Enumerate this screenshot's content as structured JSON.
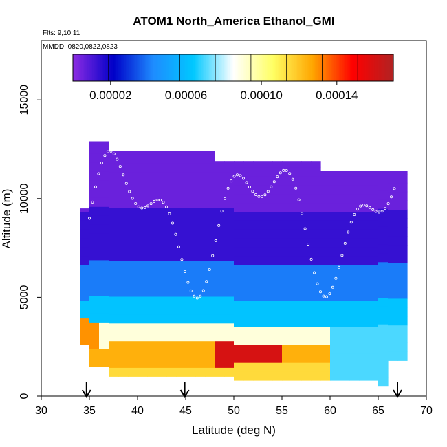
{
  "title": "ATOM1 North_America Ethanol_GMI",
  "flights_label": "Flts: 9,10,11",
  "dates_label": "MMDD: 0820,0822,0823",
  "chart_data": {
    "type": "heatmap",
    "title": "ATOM1 North_America Ethanol_GMI",
    "xlabel": "Latitude (deg N)",
    "ylabel": "Altitude (m)",
    "xlim": [
      30,
      70
    ],
    "ylim": [
      0,
      18000
    ],
    "x_ticks": [
      "30",
      "35",
      "40",
      "45",
      "50",
      "55",
      "60",
      "65",
      "70"
    ],
    "y_ticks": [
      "0",
      "5000",
      "10000",
      "15000"
    ],
    "colorbar": {
      "placement": "top-inside",
      "range": [
        0.0,
        0.00017
      ],
      "tick_labels": [
        "0.00002",
        "0.00006",
        "0.00010",
        "0.00014"
      ],
      "tick_values": [
        2e-05,
        6e-05,
        0.0001,
        0.00014
      ],
      "colors": [
        "#8a2be2",
        "#0000c8",
        "#1e8cff",
        "#00c8ff",
        "#ffffff",
        "#ffff64",
        "#ffa500",
        "#ff0000",
        "#b22222"
      ]
    },
    "arrow_latitudes": [
      34.7,
      44.9,
      67.0
    ],
    "flight_track_color": "#ffffff",
    "field_description": "Model ethanol mixing ratio curtain: low values aloft (purple/dark blue above ~6000 m), blue 3000-6000 m, high values near surface (yellow-red below ~3000 m) peaking ~0.00016 near 50-55N around 2000 m"
  }
}
